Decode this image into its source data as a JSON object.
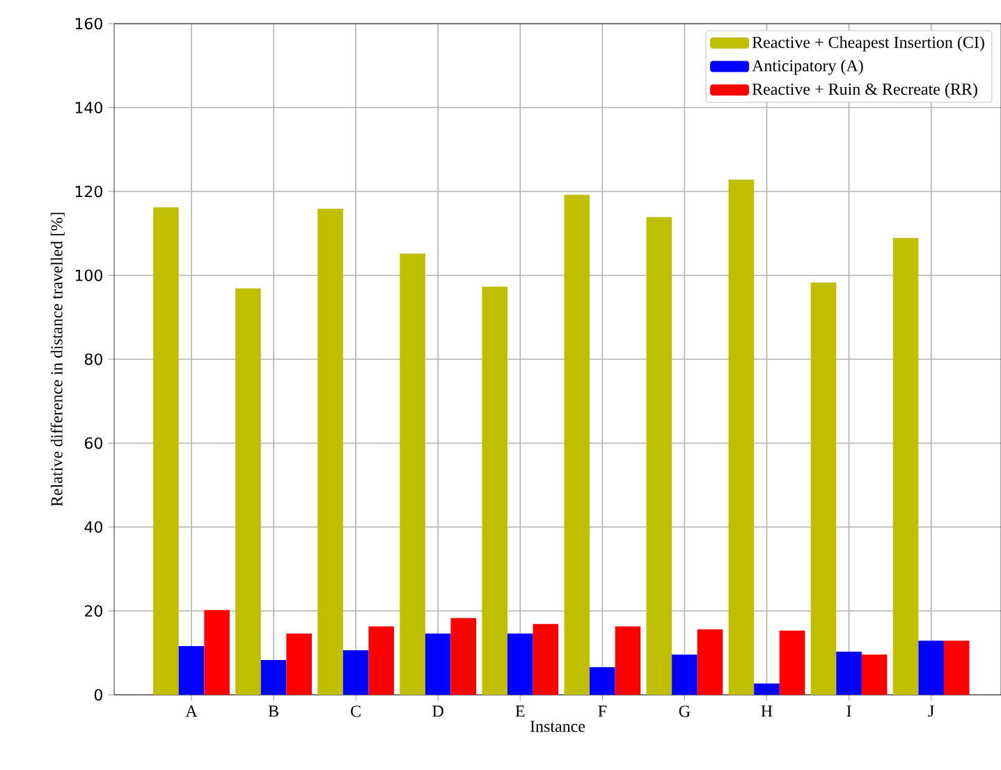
{
  "chart_data": {
    "type": "bar",
    "xlabel": "Instance",
    "ylabel": "Relative difference in distance travelled [%]",
    "categories": [
      "A",
      "B",
      "C",
      "D",
      "E",
      "F",
      "G",
      "H",
      "I",
      "J"
    ],
    "series": [
      {
        "name": "Reactive + Cheapest Insertion (CI)",
        "color": "#bfbf00",
        "values": [
          116.2,
          96.9,
          115.9,
          105.2,
          97.3,
          119.2,
          113.9,
          122.8,
          98.3,
          108.9
        ]
      },
      {
        "name": "Anticipatory (A)",
        "color": "#0000ff",
        "values": [
          11.6,
          8.3,
          10.6,
          14.6,
          14.6,
          6.6,
          9.6,
          2.7,
          10.3,
          12.9
        ]
      },
      {
        "name": "Reactive + Ruin & Recreate (RR)",
        "color": "#ff0000",
        "values": [
          20.2,
          14.6,
          16.3,
          18.3,
          16.9,
          16.3,
          15.6,
          15.3,
          9.6,
          12.9
        ]
      }
    ],
    "ylim": [
      0,
      160
    ],
    "yticks": [
      0,
      20,
      40,
      60,
      80,
      100,
      120,
      140,
      160
    ],
    "grid": true,
    "legend": "top right"
  }
}
